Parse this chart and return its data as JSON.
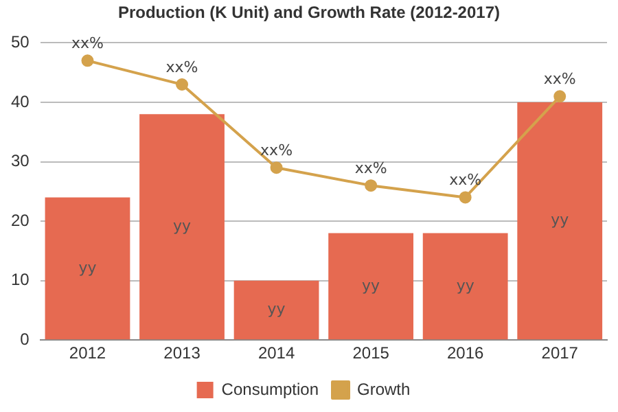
{
  "chart_data": {
    "type": "bar",
    "title": "Production (K Unit) and Growth Rate (2012-2017)",
    "categories": [
      "2012",
      "2013",
      "2014",
      "2015",
      "2016",
      "2017"
    ],
    "series": [
      {
        "name": "Consumption",
        "color": "#e66a51",
        "values": [
          24,
          38,
          10,
          18,
          18,
          40
        ],
        "value_labels": [
          "yy",
          "yy",
          "yy",
          "yy",
          "yy",
          "yy"
        ]
      },
      {
        "name": "Growth",
        "type": "line",
        "color": "#d4a24c",
        "values": [
          47,
          43,
          29,
          26,
          24,
          41
        ],
        "value_labels": [
          "xx%",
          "xx%",
          "xx%",
          "xx%",
          "xx%",
          "xx%"
        ]
      }
    ],
    "ylim": [
      0,
      50
    ],
    "yticks": [
      0,
      10,
      20,
      30,
      40,
      50
    ],
    "grid": "y",
    "legend": "bottom",
    "marker": "circle"
  }
}
